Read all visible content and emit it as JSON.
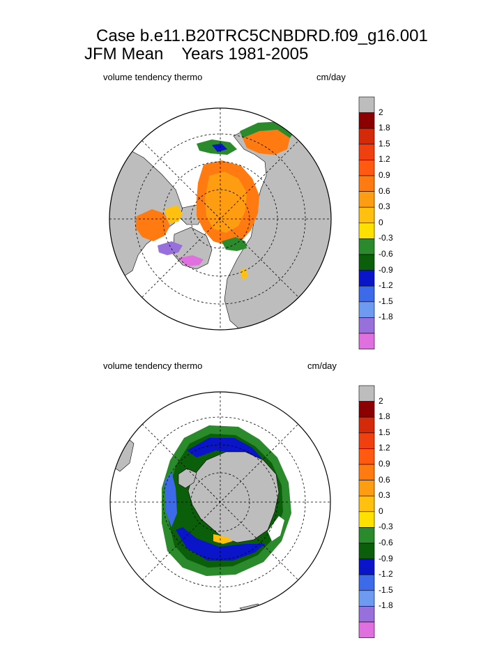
{
  "header": {
    "title_line1": "Case b.e11.B20TRC5CNBDRD.f09_g16.001",
    "title_season": "JFM Mean",
    "title_years": "Years 1981-2005"
  },
  "panels": [
    {
      "id": "north",
      "variable": "volume tendency thermo",
      "units": "cm/day",
      "hemisphere": "Northern Hemisphere",
      "projection": "polar stereographic"
    },
    {
      "id": "south",
      "variable": "volume tendency thermo",
      "units": "cm/day",
      "hemisphere": "Southern Hemisphere",
      "projection": "polar stereographic"
    }
  ],
  "colorbar": {
    "levels": [
      "2",
      "1.8",
      "1.5",
      "1.2",
      "0.9",
      "0.6",
      "0.3",
      "0",
      "-0.3",
      "-0.6",
      "-0.9",
      "-1.2",
      "-1.5",
      "-1.8"
    ],
    "colors": [
      "#8b0000",
      "#d42a0a",
      "#f04010",
      "#ff5a10",
      "#ff7a10",
      "#ff9d12",
      "#ffc010",
      "#ffe100",
      "#2b8a2b",
      "#0b5f0b",
      "#0a14c8",
      "#3c6ae8",
      "#6e9af2",
      "#9870dc",
      "#e070e0"
    ],
    "land_color": "#bdbdbd"
  },
  "chart_data": [
    {
      "type": "heatmap",
      "title": "volume tendency thermo",
      "units": "cm/day",
      "region": "Arctic",
      "contour_levels": [
        -1.8,
        -1.5,
        -1.2,
        -0.9,
        -0.6,
        -0.3,
        0,
        0.3,
        0.6,
        0.9,
        1.2,
        1.5,
        1.8,
        2
      ],
      "dominant_range": [
        0.3,
        0.9
      ],
      "notes": "Central Arctic mostly 0.6-0.9 (orange); ice edge near Barents/Greenland seas negative (-0.3 to -1.8)."
    },
    {
      "type": "heatmap",
      "title": "volume tendency thermo",
      "units": "cm/day",
      "region": "Antarctic",
      "contour_levels": [
        -1.8,
        -1.5,
        -1.2,
        -0.9,
        -0.6,
        -0.3,
        0,
        0.3,
        0.6,
        0.9,
        1.2,
        1.5,
        1.8,
        2
      ],
      "dominant_range": [
        -0.9,
        -0.3
      ],
      "notes": "Sea ice ring mostly negative (green to blue, -0.3 to -1.2); small positive patches near coast."
    }
  ]
}
